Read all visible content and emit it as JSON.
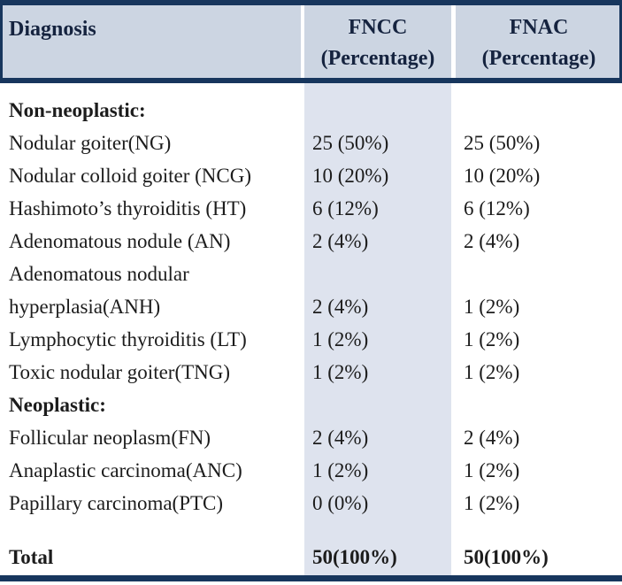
{
  "colors": {
    "navy_border": "#17365d",
    "header_background": "#ccd5e2",
    "fncc_column_shade": "#dee3ee",
    "header_text": "#15233f",
    "body_text": "#1c1c1c"
  },
  "table": {
    "header": {
      "diagnosis": "Diagnosis",
      "fncc_line1": "FNCC",
      "fncc_line2": "(Percentage)",
      "fnac_line1": "FNAC",
      "fnac_line2": "(Percentage)"
    },
    "rows": [
      {
        "diagnosis": "Non-neoplastic:",
        "fncc": "",
        "fnac": "",
        "bold": true
      },
      {
        "diagnosis": "Nodular goiter(NG)",
        "fncc": "25 (50%)",
        "fnac": "25 (50%)"
      },
      {
        "diagnosis": "Nodular colloid goiter (NCG)",
        "fncc": "10 (20%)",
        "fnac": "10 (20%)"
      },
      {
        "diagnosis": "Hashimoto’s thyroiditis (HT)",
        "fncc": "6 (12%)",
        "fnac": "6 (12%)"
      },
      {
        "diagnosis": "Adenomatous nodule (AN)",
        "fncc": "2 (4%)",
        "fnac": "2 (4%)"
      },
      {
        "diagnosis": "Adenomatous nodular",
        "fncc": "",
        "fnac": ""
      },
      {
        "diagnosis": "hyperplasia(ANH)",
        "fncc": "2 (4%)",
        "fnac": "1 (2%)"
      },
      {
        "diagnosis": "Lymphocytic thyroiditis (LT)",
        "fncc": "1 (2%)",
        "fnac": "1 (2%)"
      },
      {
        "diagnosis": "Toxic nodular goiter(TNG)",
        "fncc": "1 (2%)",
        "fnac": "1 (2%)"
      },
      {
        "diagnosis": "Neoplastic:",
        "fncc": "",
        "fnac": "",
        "bold": true
      },
      {
        "diagnosis": "Follicular neoplasm(FN)",
        "fncc": "2 (4%)",
        "fnac": "2 (4%)"
      },
      {
        "diagnosis": "Anaplastic carcinoma(ANC)",
        "fncc": "1 (2%)",
        "fnac": "1 (2%)"
      },
      {
        "diagnosis": "Papillary carcinoma(PTC)",
        "fncc": "0 (0%)",
        "fnac": "1 (2%)"
      },
      {
        "diagnosis": "Total",
        "fncc": "50(100%)",
        "fnac": "50(100%)",
        "bold": true,
        "gap_before": true
      }
    ]
  }
}
